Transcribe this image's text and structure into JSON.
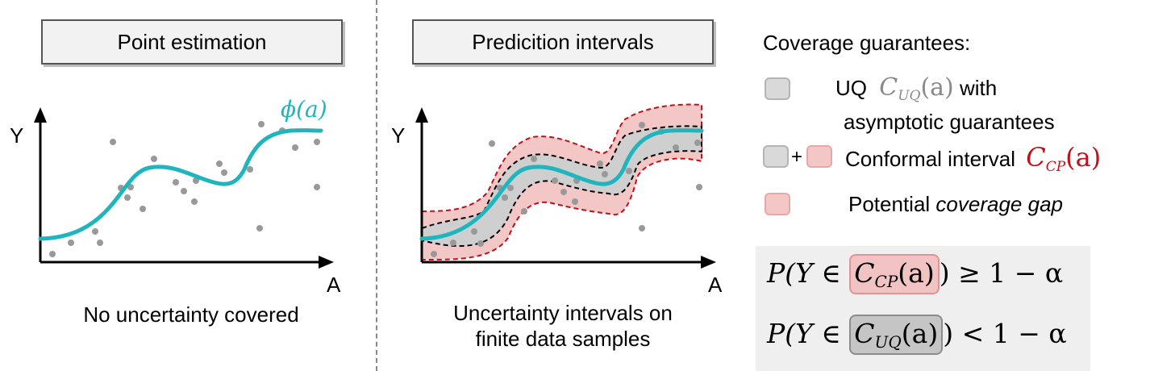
{
  "panels": {
    "point_estimation": {
      "title": "Point estimation",
      "caption": "No uncertainty covered",
      "y_axis_label": "Y",
      "x_axis_label": "A",
      "curve_label": "ϕ(a)"
    },
    "prediction_intervals": {
      "title": "Predicition intervals",
      "caption_line1": "Uncertainty intervals on",
      "caption_line2": "finite data samples",
      "y_axis_label": "Y",
      "x_axis_label": "A"
    }
  },
  "legend": {
    "title": "Coverage guarantees:",
    "uq_prefix": "UQ",
    "uq_symbol": "C",
    "uq_symbol_sub": "UQ",
    "uq_symbol_arg": "(a)",
    "uq_suffix": "with",
    "uq_line2": "asymptotic guarantees",
    "plus": "+",
    "cp_text": "Conformal interval",
    "cp_symbol": "C",
    "cp_symbol_sub": "CP",
    "cp_symbol_arg": "(a)",
    "gap_prefix": "Potential",
    "gap_italic": "coverage gap"
  },
  "formulas": {
    "f1_prefix": "P(Y ∈ ",
    "f1_set": "C",
    "f1_set_sub": "CP",
    "f1_set_arg": "(a)",
    "f1_suffix": ") ≥ 1 − α",
    "f2_prefix": "P(Y ∈ ",
    "f2_set": "C",
    "f2_set_sub": "UQ",
    "f2_set_arg": "(a)",
    "f2_suffix": ") < 1 − α"
  },
  "colors": {
    "curve": "#1fb5bf",
    "points": "#999999",
    "band_fill": "#f4c7c7",
    "band_border": "#c0101a",
    "inner_band_fill": "#cfcfcf",
    "cp_symbol": "#c0101a",
    "uq_symbol": "#8a8a8a"
  }
}
